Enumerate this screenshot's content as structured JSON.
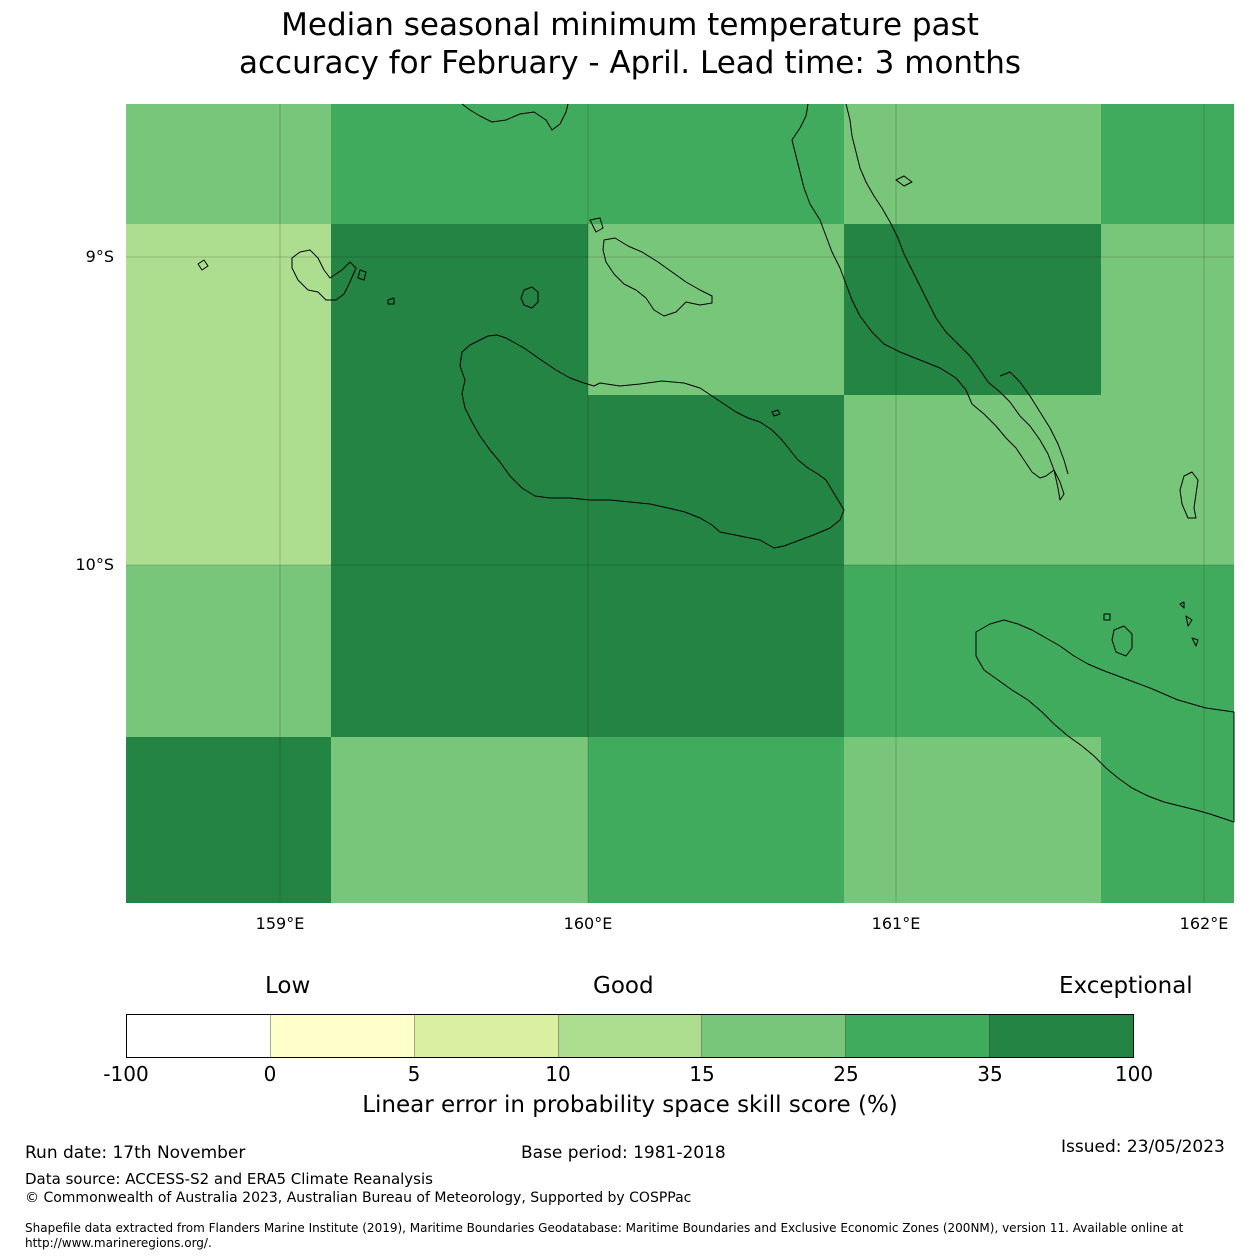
{
  "title": {
    "line1": "Median seasonal minimum temperature past",
    "line2": "accuracy for February - April. Lead time: 3 months"
  },
  "map": {
    "lat_labels": [
      "9°S",
      "10°S"
    ],
    "lon_labels": [
      "159°E",
      "160°E",
      "161°E",
      "162°E"
    ],
    "grid_colors": [
      [
        "#78c679",
        "#41ab5d",
        "#41ab5d",
        "#78c679",
        "#41ab5d",
        "#41ab5d"
      ],
      [
        "#addd8e",
        "#238443",
        "#78c679",
        "#238443",
        "#78c679",
        "#78c679"
      ],
      [
        "#addd8e",
        "#238443",
        "#238443",
        "#78c679",
        "#78c679",
        "#78c679"
      ],
      [
        "#78c679",
        "#238443",
        "#238443",
        "#41ab5d",
        "#41ab5d",
        "#41ab5d"
      ],
      [
        "#238443",
        "#78c679",
        "#41ab5d",
        "#78c679",
        "#41ab5d",
        "#41ab5d"
      ]
    ],
    "coastline_color": "#000000"
  },
  "colorbar": {
    "word_low": "Low",
    "word_good": "Good",
    "word_exceptional": "Exceptional",
    "colors": [
      "#ffffff",
      "#ffffcc",
      "#d9f0a3",
      "#addd8e",
      "#78c679",
      "#41ab5d",
      "#238443"
    ],
    "ticks": [
      "-100",
      "0",
      "5",
      "10",
      "15",
      "25",
      "35",
      "100"
    ],
    "label": "Linear error in probability space skill score (%)"
  },
  "footer": {
    "run_date": "Run date: 17th November",
    "base_period": "Base period: 1981-2018",
    "issued": "Issued: 23/05/2023",
    "data_source": "Data source: ACCESS-S2 and ERA5 Climate Reanalysis",
    "copyright": "© Commonwealth of Australia 2023, Australian Bureau of Meteorology, Supported by COSPPac",
    "shapefile": "Shapefile data extracted from Flanders Marine Institute (2019), Maritime Boundaries Geodatabase: Maritime Boundaries and Exclusive Economic Zones (200NM), version 11. Available online at http://www.marineregions.org/."
  }
}
